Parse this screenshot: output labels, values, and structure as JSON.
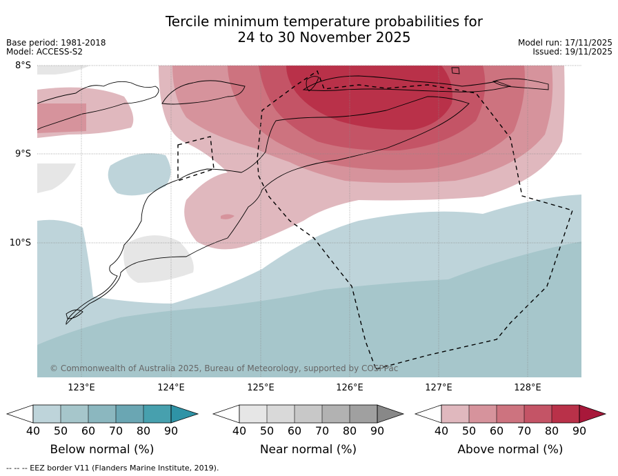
{
  "title_line1": "Tercile minimum temperature probabilities for",
  "title_line2": "24 to 30 November 2025",
  "meta": {
    "base_period": "Base period: 1981-2018",
    "model": "Model: ACCESS-S2",
    "model_run": "Model run: 17/11/2025",
    "issued": "Issued: 19/11/2025"
  },
  "latitudes": [
    "8°S",
    "9°S",
    "10°S"
  ],
  "longitudes": [
    "123°E",
    "124°E",
    "125°E",
    "126°E",
    "127°E",
    "128°E"
  ],
  "copyright": "© Commonwealth of Australia 2025, Bureau of Meteorology, supported by COSPPac",
  "legends": [
    {
      "label": "Below normal (%)",
      "ticks": [
        "40",
        "50",
        "60",
        "70",
        "80",
        "90"
      ],
      "colors": [
        "#bed4da",
        "#a6c6cb",
        "#8bb7bf",
        "#6aa6b3",
        "#47a0ae",
        "#2f93a6"
      ]
    },
    {
      "label": "Near normal (%)",
      "ticks": [
        "40",
        "50",
        "60",
        "70",
        "80",
        "90"
      ],
      "colors": [
        "#e6e6e6",
        "#d9d9d9",
        "#c8c8c8",
        "#b2b2b2",
        "#a0a0a0",
        "#888888"
      ]
    },
    {
      "label": "Above normal (%)",
      "ticks": [
        "40",
        "50",
        "60",
        "70",
        "80",
        "90"
      ],
      "colors": [
        "#e0b8be",
        "#d6939c",
        "#cd737f",
        "#c45466",
        "#b93149",
        "#a8183a"
      ]
    }
  ],
  "footnote": "--  --  -- EEZ border V11 (Flanders Marine Institute, 2019)."
}
